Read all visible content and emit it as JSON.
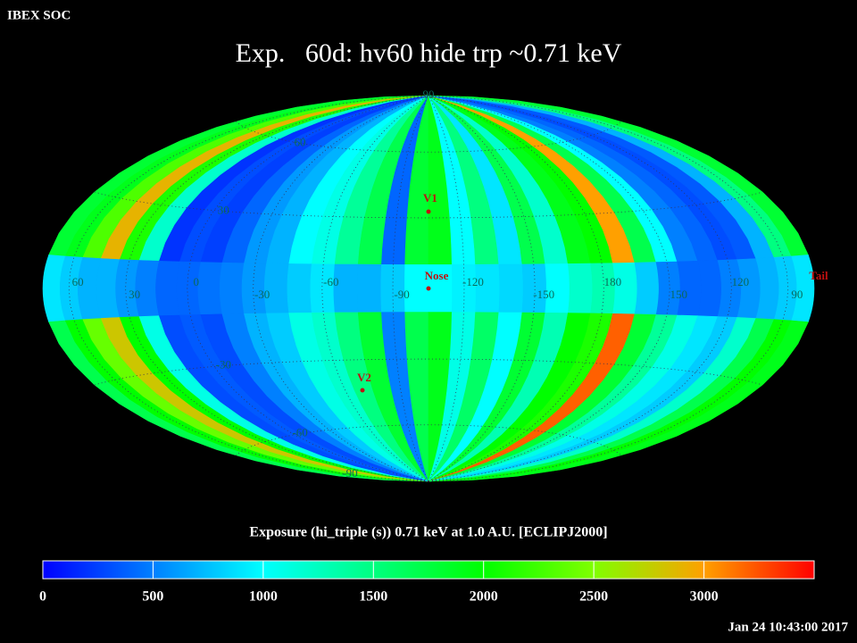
{
  "chart_data": {
    "type": "skymap",
    "header": "IBEX SOC",
    "title": "Exp.   60d: hv60 hide trp ~0.71 keV",
    "colorbar_label": "Exposure (hi_triple (s))  0.71 keV at 1.0 A.U. [ECLIPJ2000]",
    "timestamp": "Jan 24 10:43:00 2017",
    "clim": [
      0,
      3500
    ],
    "colorbar_ticks": [
      0,
      500,
      1000,
      1500,
      2000,
      2500,
      3000
    ],
    "colormap": [
      "#0000ff",
      "#0080ff",
      "#00ffff",
      "#00ff80",
      "#00ff00",
      "#80ff00",
      "#ffa000",
      "#ff0000"
    ],
    "lon_labels": [
      60,
      30,
      0,
      -30,
      -60,
      -90,
      -120,
      -150,
      180,
      150,
      120,
      90
    ],
    "lat_labels": [
      90,
      60,
      30,
      -30,
      -60,
      -90
    ],
    "markers": [
      "V1",
      "Nose",
      "V2",
      "Tail"
    ],
    "z": [
      [
        1800,
        1900,
        2300,
        2900,
        2100,
        1200,
        200,
        300,
        250,
        400,
        600,
        700,
        1000,
        1100,
        1400,
        1700,
        400,
        1800,
        1900,
        1000,
        1500,
        900,
        1700,
        1200,
        1900,
        2000,
        3000,
        1700,
        1000,
        500,
        400,
        300,
        350,
        700,
        1500,
        1800
      ],
      [
        900,
        800,
        700,
        700,
        600,
        500,
        400,
        400,
        450,
        500,
        600,
        700,
        800,
        900,
        700,
        700,
        800,
        1000,
        1000,
        950,
        900,
        850,
        800,
        1000,
        1200,
        1300,
        1100,
        800,
        500,
        400,
        400,
        500,
        600,
        700,
        800,
        900
      ],
      [
        1700,
        2000,
        2400,
        2800,
        2000,
        1100,
        300,
        350,
        300,
        500,
        700,
        800,
        1100,
        1200,
        1500,
        1800,
        500,
        1700,
        1900,
        1100,
        1600,
        1000,
        1800,
        1300,
        2000,
        2100,
        3200,
        1800,
        1400,
        1100,
        900,
        800,
        1200,
        1700,
        2000,
        1900
      ]
    ]
  }
}
